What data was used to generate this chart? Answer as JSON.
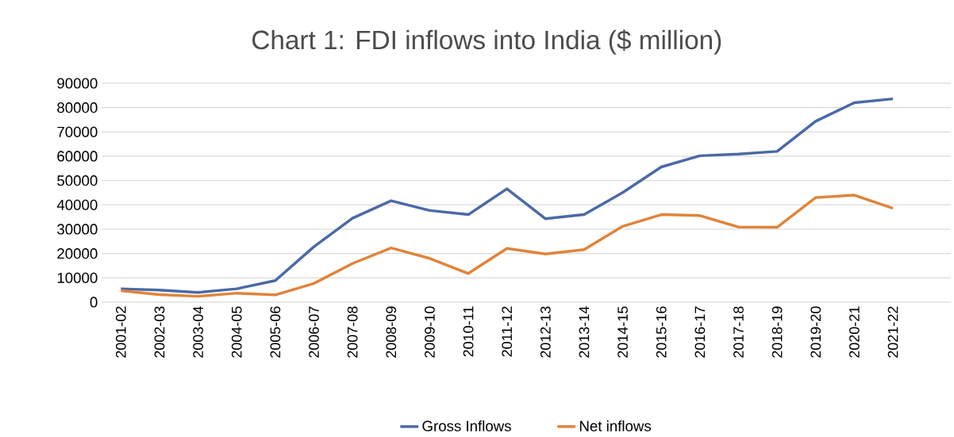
{
  "chart_data": {
    "type": "line",
    "title": "Chart 1: FDI inflows into India ($ million)",
    "categories": [
      "2001-02",
      "2002-03",
      "2003-04",
      "2004-05",
      "2005-06",
      "2006-07",
      "2007-08",
      "2008-09",
      "2009-10",
      "2010-11",
      "2011-12",
      "2012-13",
      "2013-14",
      "2014-15",
      "2015-16",
      "2016-17",
      "2017-18",
      "2018-19",
      "2019-20",
      "2020-21",
      "2021-22"
    ],
    "series": [
      {
        "name": "Gross Inflows",
        "color": "#4a6aa5",
        "values": [
          5500,
          5000,
          4000,
          5500,
          8900,
          22800,
          34500,
          41700,
          37700,
          36000,
          46600,
          34300,
          36000,
          45100,
          55600,
          60200,
          60900,
          62000,
          74400,
          82000,
          83600
        ]
      },
      {
        "name": "Net inflows",
        "color": "#e0843a",
        "values": [
          4700,
          3100,
          2400,
          3700,
          3000,
          7700,
          15900,
          22300,
          18000,
          11800,
          22100,
          19800,
          21600,
          31200,
          36000,
          35600,
          30900,
          30800,
          43000,
          44000,
          38600
        ]
      }
    ],
    "ylim": [
      0,
      90000
    ],
    "yticks": [
      0,
      10000,
      20000,
      30000,
      40000,
      50000,
      60000,
      70000,
      80000,
      90000
    ],
    "grid": "y",
    "legend": "bottom",
    "marker": "none",
    "line_style": "solid"
  }
}
